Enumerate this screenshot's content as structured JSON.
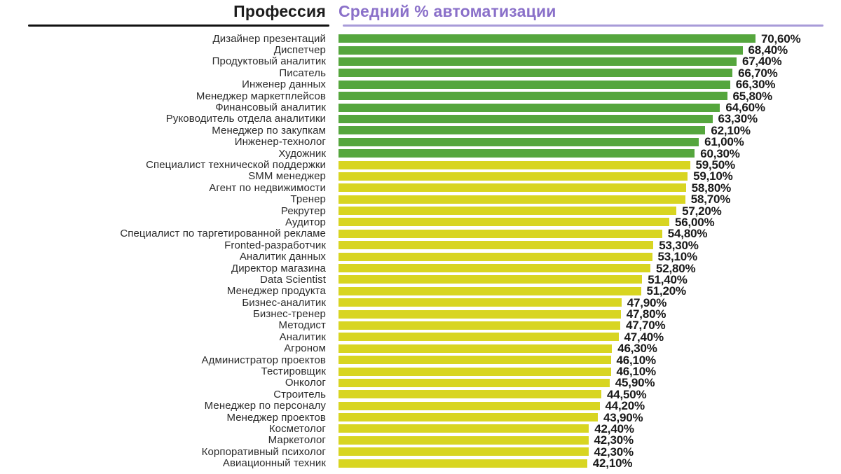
{
  "header": {
    "left_title": "Профессия",
    "right_title": "Средний % автоматизации"
  },
  "colors": {
    "bar_green": "#55a63d",
    "bar_yellow": "#d8d521",
    "header_right_text": "#8a70c9",
    "underline_purple": "#a89bd8",
    "underline_black": "#111111"
  },
  "chart_data": {
    "type": "bar",
    "orientation": "horizontal",
    "title": "",
    "xlabel": "Средний % автоматизации",
    "ylabel": "Профессия",
    "xlim": [
      0,
      70.6
    ],
    "grid": false,
    "legend": false,
    "color_rule": "green if value >= 60, yellow otherwise",
    "green_threshold": 60,
    "categories": [
      "Дизайнер презентаций",
      "Диспетчер",
      "Продуктовый аналитик",
      "Писатель",
      "Инженер данных",
      "Менеджер маркетплейсов",
      "Финансовый аналитик",
      "Руководитель отдела аналитики",
      "Менеджер по закупкам",
      "Инженер-технолог",
      "Художник",
      "Специалист технической поддержки",
      "SMM менеджер",
      "Агент по недвижимости",
      "Тренер",
      "Рекрутер",
      "Аудитор",
      "Специалист по таргетированной рекламе",
      "Fronted-разработчик",
      "Аналитик данных",
      "Директор магазина",
      "Data Scientist",
      "Менеджер продукта",
      "Бизнес-аналитик",
      "Бизнес-тренер",
      "Методист",
      "Аналитик",
      "Агроном",
      "Администратор проектов",
      "Тестировщик",
      "Онколог",
      "Строитель",
      "Менеджер по персоналу",
      "Менеджер проектов",
      "Косметолог",
      "Маркетолог",
      "Корпоративный психолог",
      "Авиационный техник"
    ],
    "values": [
      70.6,
      68.4,
      67.4,
      66.7,
      66.3,
      65.8,
      64.6,
      63.3,
      62.1,
      61.0,
      60.3,
      59.5,
      59.1,
      58.8,
      58.7,
      57.2,
      56.0,
      54.8,
      53.3,
      53.1,
      52.8,
      51.4,
      51.2,
      47.9,
      47.8,
      47.7,
      47.4,
      46.3,
      46.1,
      46.1,
      45.9,
      44.5,
      44.2,
      43.9,
      42.4,
      42.3,
      42.3,
      42.1
    ],
    "value_labels": [
      "70,60%",
      "68,40%",
      "67,40%",
      "66,70%",
      "66,30%",
      "65,80%",
      "64,60%",
      "63,30%",
      "62,10%",
      "61,00%",
      "60,30%",
      "59,50%",
      "59,10%",
      "58,80%",
      "58,70%",
      "57,20%",
      "56,00%",
      "54,80%",
      "53,30%",
      "53,10%",
      "52,80%",
      "51,40%",
      "51,20%",
      "47,90%",
      "47,80%",
      "47,70%",
      "47,40%",
      "46,30%",
      "46,10%",
      "46,10%",
      "45,90%",
      "44,50%",
      "44,20%",
      "43,90%",
      "42,40%",
      "42,30%",
      "42,30%",
      "42,10%"
    ]
  }
}
